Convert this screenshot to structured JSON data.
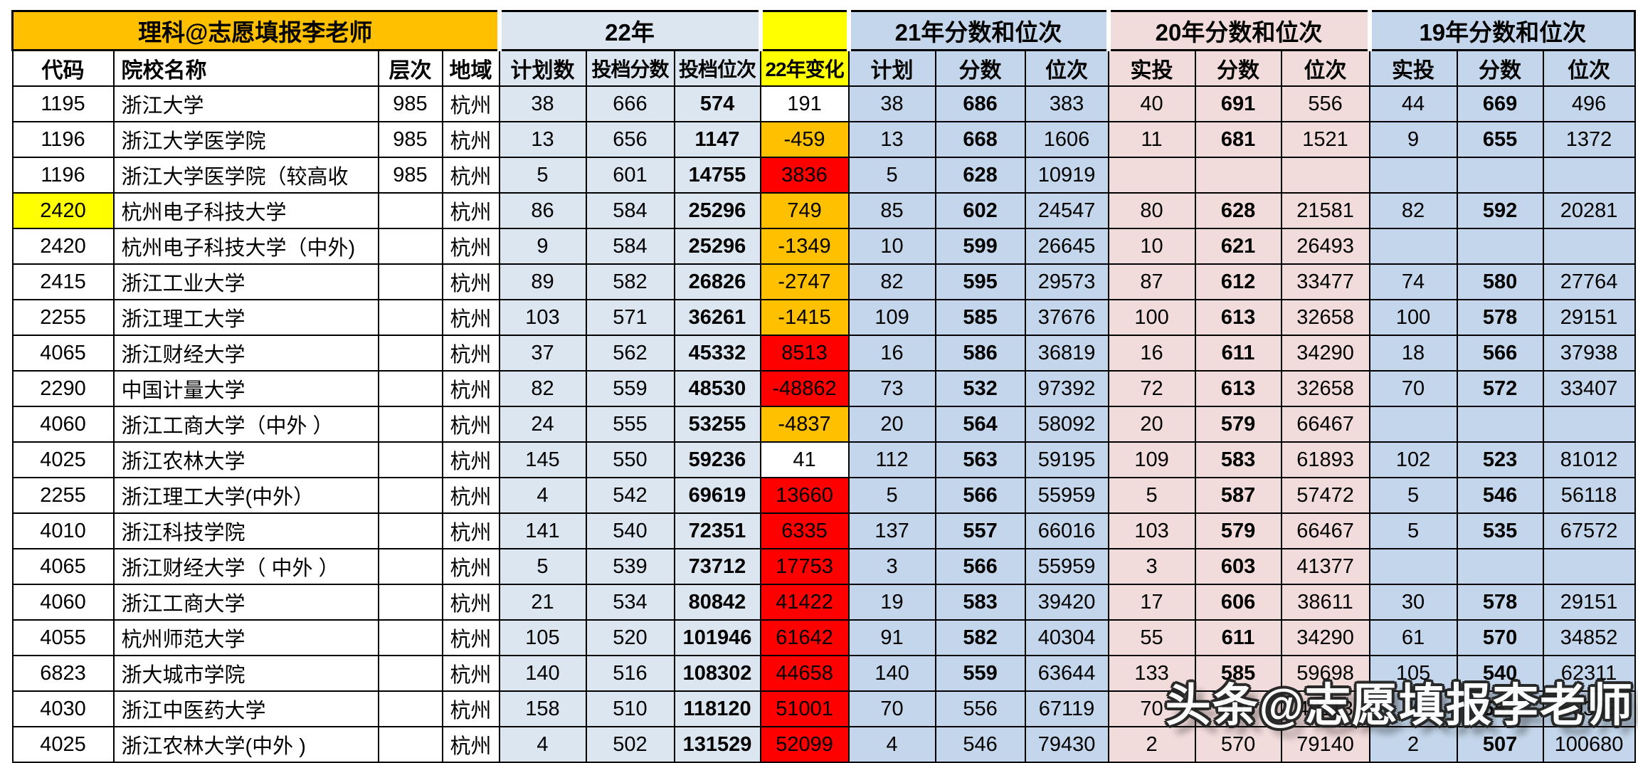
{
  "title": "理科@志愿填报李老师",
  "watermark": "头条@志愿填报李老师",
  "groups": {
    "y22": "22年",
    "spacer": "",
    "y21": "21年分数和位次",
    "y20": "20年分数和位次",
    "y19": "19年分数和位次"
  },
  "sub": {
    "code": "代码",
    "name": "院校名称",
    "level": "层次",
    "region": "地域",
    "plan_n": "计划数",
    "score_t": "投档分数",
    "rank_t": "投档位次",
    "change": "22年变化",
    "plan": "计划",
    "score": "分数",
    "rank": "位次",
    "actual": "实投"
  },
  "colors": {
    "orange": "#FFC000",
    "yellow": "#FFFF00",
    "red": "#FF0000",
    "white": "#FFFFFF",
    "blue22": "#DCE6F1",
    "blue21": "#C3D6EB",
    "pink20": "#F2DCDB"
  },
  "chart_data": {
    "type": "table",
    "title": "理科@志愿填报李老师",
    "group_headers": [
      "22年",
      "",
      "21年分数和位次",
      "20年分数和位次",
      "19年分数和位次"
    ],
    "columns": [
      "代码",
      "院校名称",
      "层次",
      "地域",
      "计划数",
      "投档分数",
      "投档位次",
      "22年变化",
      "计划",
      "分数",
      "位次",
      "实投",
      "分数",
      "位次",
      "实投",
      "分数",
      "位次"
    ],
    "rows": [
      {
        "code": "1195",
        "name": "浙江大学",
        "level": "985",
        "region": "杭州",
        "plan22": "38",
        "score22": "666",
        "rank22": "574",
        "change": "191",
        "change_bg": "white",
        "plan21": "38",
        "score21": "686",
        "rank21": "383",
        "actual20": "40",
        "score20": "691",
        "rank20": "556",
        "actual19": "44",
        "score19": "669",
        "rank19": "496"
      },
      {
        "code": "1196",
        "name": "浙江大学医学院",
        "level": "985",
        "region": "杭州",
        "plan22": "13",
        "score22": "656",
        "rank22": "1147",
        "change": "-459",
        "change_bg": "orange",
        "plan21": "13",
        "score21": "668",
        "rank21": "1606",
        "actual20": "11",
        "score20": "681",
        "rank20": "1521",
        "actual19": "9",
        "score19": "655",
        "rank19": "1372"
      },
      {
        "code": "1196",
        "name": "浙江大学医学院（较高收",
        "level": "985",
        "region": "杭州",
        "plan22": "5",
        "score22": "601",
        "rank22": "14755",
        "change": "3836",
        "change_bg": "red",
        "plan21": "5",
        "score21": "628",
        "rank21": "10919",
        "actual20": "",
        "score20": "",
        "rank20": "",
        "actual19": "",
        "score19": "",
        "rank19": ""
      },
      {
        "code": "2420",
        "code_bg": "yellow",
        "name": "杭州电子科技大学",
        "level": "",
        "region": "杭州",
        "plan22": "86",
        "score22": "584",
        "rank22": "25296",
        "change": "749",
        "change_bg": "orange",
        "plan21": "85",
        "score21": "602",
        "rank21": "24547",
        "actual20": "80",
        "score20": "628",
        "rank20": "21581",
        "actual19": "82",
        "score19": "592",
        "rank19": "20281"
      },
      {
        "code": "2420",
        "name": "杭州电子科技大学（中外)",
        "level": "",
        "region": "杭州",
        "plan22": "9",
        "score22": "584",
        "rank22": "25296",
        "change": "-1349",
        "change_bg": "orange",
        "plan21": "10",
        "score21": "599",
        "rank21": "26645",
        "actual20": "10",
        "score20": "621",
        "rank20": "26493",
        "actual19": "",
        "score19": "",
        "rank19": ""
      },
      {
        "code": "2415",
        "name": "浙江工业大学",
        "level": "",
        "region": "杭州",
        "plan22": "89",
        "score22": "582",
        "rank22": "26826",
        "change": "-2747",
        "change_bg": "orange",
        "plan21": "82",
        "score21": "595",
        "rank21": "29573",
        "actual20": "87",
        "score20": "612",
        "rank20": "33477",
        "actual19": "74",
        "score19": "580",
        "rank19": "27764"
      },
      {
        "code": "2255",
        "name": "浙江理工大学",
        "level": "",
        "region": "杭州",
        "plan22": "103",
        "score22": "571",
        "rank22": "36261",
        "change": "-1415",
        "change_bg": "orange",
        "plan21": "109",
        "score21": "585",
        "rank21": "37676",
        "actual20": "100",
        "score20": "613",
        "rank20": "32658",
        "actual19": "100",
        "score19": "578",
        "rank19": "29151"
      },
      {
        "code": "4065",
        "name": "浙江财经大学",
        "level": "",
        "region": "杭州",
        "plan22": "37",
        "score22": "562",
        "rank22": "45332",
        "change": "8513",
        "change_bg": "red",
        "plan21": "16",
        "score21": "586",
        "rank21": "36819",
        "actual20": "16",
        "score20": "611",
        "rank20": "34290",
        "actual19": "18",
        "score19": "566",
        "rank19": "37938"
      },
      {
        "code": "2290",
        "name": "中国计量大学",
        "level": "",
        "region": "杭州",
        "plan22": "82",
        "score22": "559",
        "rank22": "48530",
        "change": "-48862",
        "change_bg": "red",
        "plan21": "73",
        "score21": "532",
        "rank21": "97392",
        "actual20": "72",
        "score20": "613",
        "rank20": "32658",
        "actual19": "70",
        "score19": "572",
        "rank19": "33407"
      },
      {
        "code": "4060",
        "name": "浙江工商大学（中外 ）",
        "level": "",
        "region": "杭州",
        "plan22": "24",
        "score22": "555",
        "rank22": "53255",
        "change": "-4837",
        "change_bg": "orange",
        "plan21": "20",
        "score21": "564",
        "rank21": "58092",
        "actual20": "20",
        "score20": "579",
        "rank20": "66467",
        "actual19": "",
        "score19": "",
        "rank19": ""
      },
      {
        "code": "4025",
        "name": "浙江农林大学",
        "level": "",
        "region": "杭州",
        "plan22": "145",
        "score22": "550",
        "rank22": "59236",
        "change": "41",
        "change_bg": "white",
        "plan21": "112",
        "score21": "563",
        "rank21": "59195",
        "actual20": "109",
        "score20": "583",
        "rank20": "61893",
        "actual19": "102",
        "score19": "523",
        "rank19": "81012"
      },
      {
        "code": "2255",
        "name": "浙江理工大学(中外）",
        "level": "",
        "region": "杭州",
        "plan22": "4",
        "score22": "542",
        "rank22": "69619",
        "change": "13660",
        "change_bg": "red",
        "plan21": "5",
        "score21": "566",
        "rank21": "55959",
        "actual20": "5",
        "score20": "587",
        "rank20": "57472",
        "actual19": "5",
        "score19": "546",
        "rank19": "56118"
      },
      {
        "code": "4010",
        "name": "浙江科技学院",
        "level": "",
        "region": "杭州",
        "plan22": "141",
        "score22": "540",
        "rank22": "72351",
        "change": "6335",
        "change_bg": "red",
        "plan21": "137",
        "score21": "557",
        "rank21": "66016",
        "actual20": "103",
        "score20": "579",
        "rank20": "66467",
        "actual19": "5",
        "score19": "535",
        "rank19": "67572"
      },
      {
        "code": "4065",
        "name": "浙江财经大学（ 中外 ）",
        "level": "",
        "region": "杭州",
        "plan22": "5",
        "score22": "539",
        "rank22": "73712",
        "change": "17753",
        "change_bg": "red",
        "plan21": "3",
        "score21": "566",
        "rank21": "55959",
        "actual20": "3",
        "score20": "603",
        "rank20": "41377",
        "actual19": "",
        "score19": "",
        "rank19": ""
      },
      {
        "code": "4060",
        "name": "浙江工商大学",
        "level": "",
        "region": "杭州",
        "plan22": "21",
        "score22": "534",
        "rank22": "80842",
        "change": "41422",
        "change_bg": "red",
        "plan21": "19",
        "score21": "583",
        "rank21": "39420",
        "actual20": "17",
        "score20": "606",
        "rank20": "38611",
        "actual19": "30",
        "score19": "578",
        "rank19": "29151"
      },
      {
        "code": "4055",
        "name": "杭州师范大学",
        "level": "",
        "region": "杭州",
        "plan22": "105",
        "score22": "520",
        "rank22": "101946",
        "change": "61642",
        "change_bg": "red",
        "plan21": "91",
        "score21": "582",
        "rank21": "40304",
        "actual20": "55",
        "score20": "611",
        "rank20": "34290",
        "actual19": "61",
        "score19": "570",
        "rank19": "34852"
      },
      {
        "code": "6823",
        "name": "浙大城市学院",
        "level": "",
        "region": "杭州",
        "plan22": "140",
        "score22": "516",
        "rank22": "108302",
        "change": "44658",
        "change_bg": "red",
        "plan21": "140",
        "score21": "559",
        "rank21": "63644",
        "actual20": "133",
        "score20": "585",
        "rank20": "59698",
        "actual19": "105",
        "score19": "540",
        "rank19": "62311"
      },
      {
        "code": "4030",
        "name": "浙江中医药大学",
        "level": "",
        "region": "杭州",
        "plan22": "158",
        "score22": "510",
        "rank22": "118120",
        "change": "51001",
        "change_bg": "red",
        "plan21": "70",
        "score21": "556",
        "score21_bold": false,
        "rank21": "67119",
        "actual20": "70",
        "score20": "595",
        "rank20": "49113",
        "actual19": "70",
        "score19": "552",
        "rank19": "50338"
      },
      {
        "code": "4025",
        "name": "浙江农林大学(中外 )",
        "level": "",
        "region": "杭州",
        "plan22": "4",
        "score22": "502",
        "rank22": "131529",
        "change": "52099",
        "change_bg": "red",
        "plan21": "4",
        "score21": "546",
        "score21_bold": false,
        "rank21": "79430",
        "actual20": "2",
        "score20": "570",
        "score20_bold": false,
        "rank20": "79140",
        "actual19": "2",
        "score19": "507",
        "rank19": "100680"
      }
    ]
  }
}
